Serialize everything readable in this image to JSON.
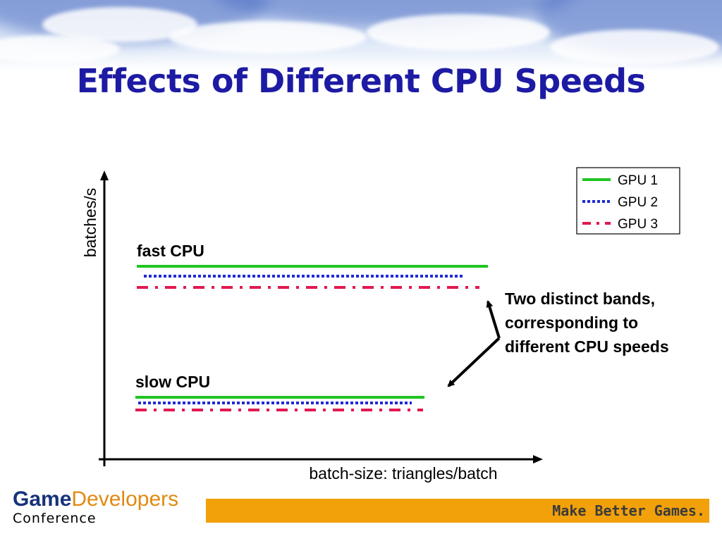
{
  "slide": {
    "title": "Effects of Different CPU Speeds"
  },
  "diagram": {
    "y_axis_label": "batches/s",
    "x_axis_label": "batch-size: triangles/batch",
    "groups": [
      {
        "label": "fast CPU"
      },
      {
        "label": "slow CPU"
      }
    ],
    "legend": [
      {
        "name": "GPU 1",
        "color": "#22c422",
        "style": "solid"
      },
      {
        "name": "GPU 2",
        "color": "#1f2ad6",
        "style": "dotted"
      },
      {
        "name": "GPU 3",
        "color": "#e0194f",
        "style": "dash-dot"
      }
    ],
    "annotation": {
      "lines": [
        "Two distinct bands,",
        "corresponding to",
        "different CPU speeds"
      ]
    }
  },
  "footer": {
    "logo_game": "Game",
    "logo_developers": "Developers",
    "logo_conference": "Conference",
    "slogan": "Make Better Games."
  }
}
